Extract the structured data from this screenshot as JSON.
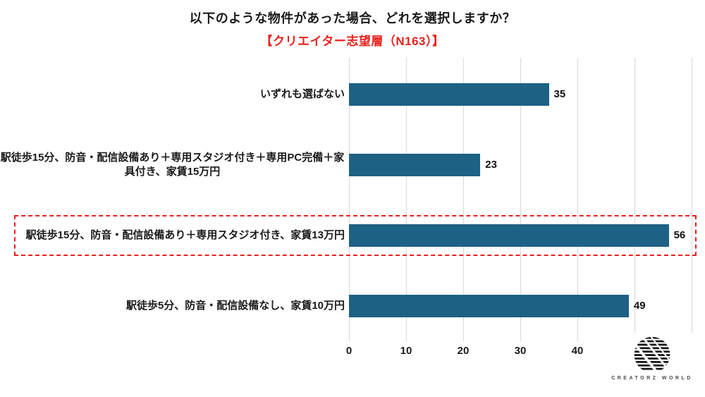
{
  "header": {
    "title": "以下のような物件があった場合、どれを選択しますか？",
    "subtitle": "【クリエイター志望層（N163）】"
  },
  "chart_data": {
    "type": "bar",
    "orientation": "horizontal",
    "title": "以下のような物件があった場合、どれを選択しますか？",
    "subtitle": "【クリエイター志望層（N163）】",
    "categories": [
      "いずれも選ばない",
      "駅徒歩15分、防音・配信設備あり＋専用スタジオ付き＋専用PC完備＋家具付き、家賃15万円",
      "駅徒歩15分、防音・配信設備あり＋専用スタジオ付き、家賃13万円",
      "駅徒歩5分、防音・配信設備なし、家賃10万円"
    ],
    "values": [
      35,
      23,
      56,
      49
    ],
    "value_labels_shown": true,
    "highlighted_category_index": 2,
    "xlim": [
      0,
      60
    ],
    "x_tick_labels": [
      "0",
      "10",
      "20",
      "30",
      "40"
    ],
    "x_tick_values": [
      0,
      10,
      20,
      30,
      40
    ],
    "gridline_values": [
      0,
      10,
      20,
      30,
      40,
      50,
      60
    ],
    "grid": "vertical-only",
    "legend": "none"
  },
  "colors": {
    "bar": "#1d6185",
    "highlight_box": "#ea2020",
    "subtitle_red": "#e8231f",
    "gridline": "#d9d9d9",
    "text": "#1a1a1a",
    "background": "#ffffff"
  },
  "logo": {
    "icon": "striped-globe-icon",
    "text": "CREATORZ WORLD"
  }
}
